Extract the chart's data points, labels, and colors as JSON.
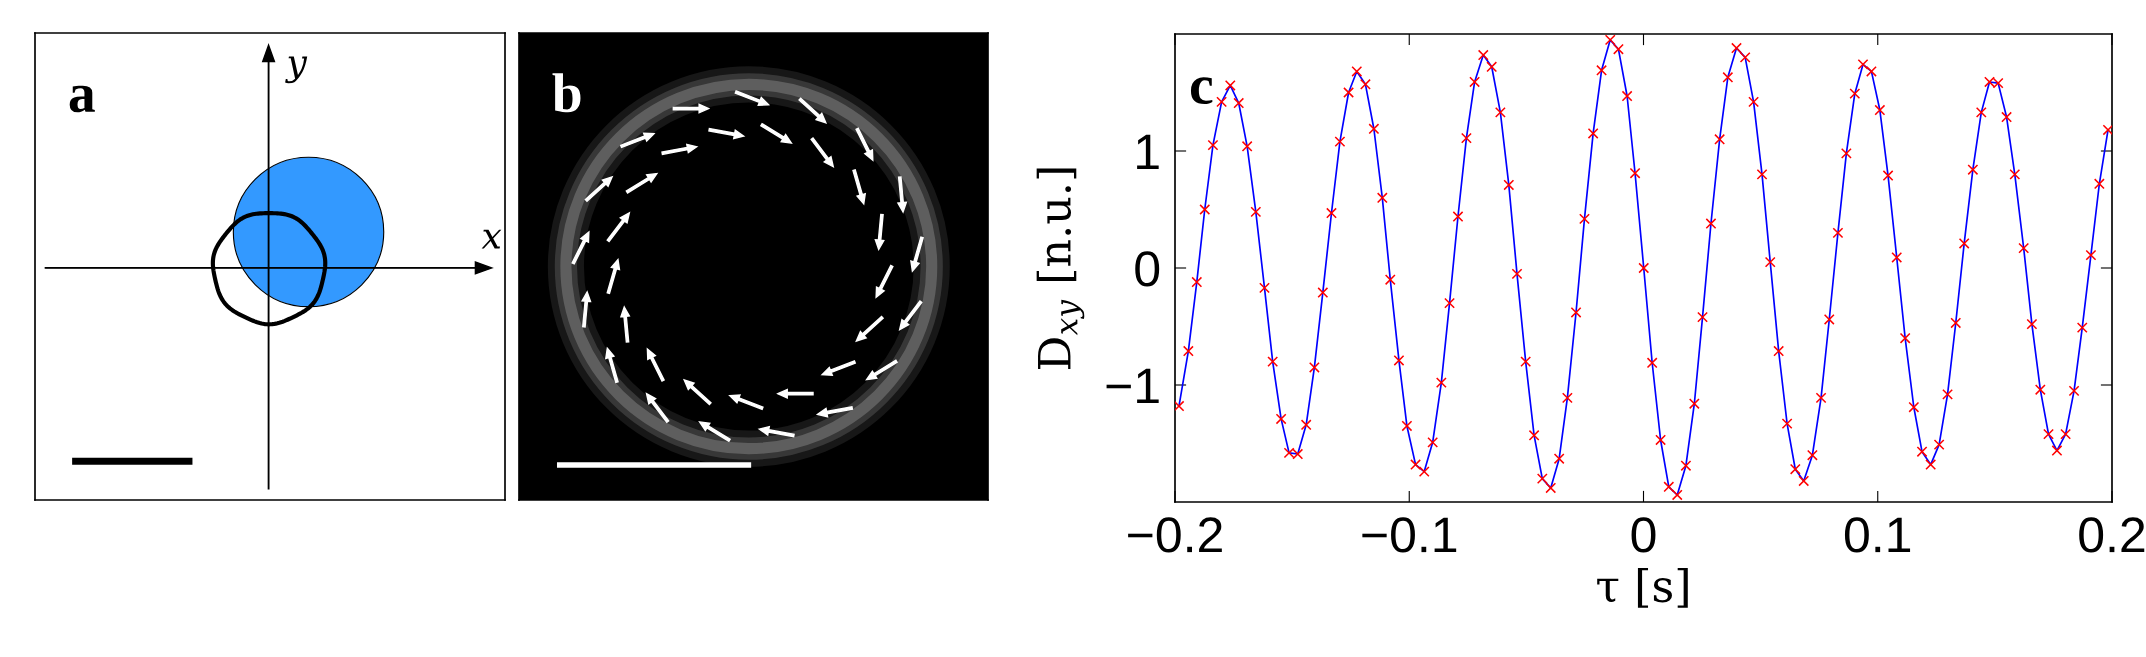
{
  "chart_data": [
    {
      "type": "other",
      "annotations": [
        "a",
        "x",
        "y"
      ]
    },
    {
      "type": "other",
      "annotations": [
        "b"
      ]
    },
    {
      "type": "line",
      "xlabel": "τ [s]",
      "ylabel": "D$_{xy}$ [n.u.]",
      "annotations": [
        "c"
      ],
      "x": [
        -0.1983,
        -0.1943,
        -0.1907,
        -0.1873,
        -0.1838,
        -0.1801,
        -0.1764,
        -0.1728,
        -0.1692,
        -0.1655,
        -0.1618,
        -0.1583,
        -0.1547,
        -0.1513,
        -0.1476,
        -0.144,
        -0.1405,
        -0.1369,
        -0.1332,
        -0.1296,
        -0.1259,
        -0.1224,
        -0.1187,
        -0.1151,
        -0.1115,
        -0.1081,
        -0.1044,
        -0.101,
        -0.0973,
        -0.0936,
        -0.09,
        -0.0863,
        -0.0828,
        -0.0792,
        -0.0756,
        -0.0721,
        -0.0684,
        -0.0648,
        -0.0611,
        -0.0575,
        -0.054,
        -0.0503,
        -0.0467,
        -0.0432,
        -0.0396,
        -0.036,
        -0.0325,
        -0.0288,
        -0.0252,
        -0.0215,
        -0.0179,
        -0.0142,
        -0.0107,
        -0.007,
        -0.0036,
        0.0001,
        0.0037,
        0.0073,
        0.0108,
        0.0144,
        0.0181,
        0.0217,
        0.0252,
        0.0288,
        0.0325,
        0.036,
        0.0397,
        0.0434,
        0.047,
        0.0506,
        0.0541,
        0.0577,
        0.0613,
        0.0648,
        0.0684,
        0.0721,
        0.0758,
        0.0793,
        0.083,
        0.0866,
        0.0902,
        0.0937,
        0.0973,
        0.1009,
        0.1044,
        0.1081,
        0.1117,
        0.1154,
        0.1189,
        0.1226,
        0.1262,
        0.1298,
        0.1333,
        0.1369,
        0.1406,
        0.1442,
        0.1477,
        0.1514,
        0.155,
        0.1585,
        0.1623,
        0.1658,
        0.1694,
        0.1729,
        0.1765,
        0.1802,
        0.1838,
        0.1873,
        0.191,
        0.1946,
        0.1983
      ],
      "series": [
        {
          "type": "line",
          "color": "#0000ff",
          "values": [
            -1.18,
            -0.71,
            -0.12,
            0.5,
            1.05,
            1.42,
            1.56,
            1.41,
            1.04,
            0.48,
            -0.17,
            -0.8,
            -1.29,
            -1.58,
            -1.59,
            -1.34,
            -0.85,
            -0.21,
            0.47,
            1.08,
            1.5,
            1.68,
            1.57,
            1.19,
            0.6,
            -0.1,
            -0.79,
            -1.35,
            -1.68,
            -1.74,
            -1.49,
            -0.98,
            -0.3,
            0.44,
            1.11,
            1.59,
            1.82,
            1.72,
            1.33,
            0.71,
            -0.05,
            -0.8,
            -1.43,
            -1.8,
            -1.88,
            -1.63,
            -1.11,
            -0.38,
            0.42,
            1.15,
            1.69,
            1.95,
            1.87,
            1.47,
            0.81,
            0.0,
            -0.81,
            -1.47,
            -1.87,
            -1.94,
            -1.69,
            -1.16,
            -0.42,
            0.38,
            1.1,
            1.63,
            1.88,
            1.8,
            1.42,
            0.8,
            0.05,
            -0.71,
            -1.33,
            -1.72,
            -1.82,
            -1.6,
            -1.11,
            -0.44,
            0.3,
            0.98,
            1.49,
            1.74,
            1.68,
            1.35,
            0.79,
            0.09,
            -0.6,
            -1.19,
            -1.57,
            -1.68,
            -1.51,
            -1.08,
            -0.47,
            0.21,
            0.84,
            1.33,
            1.59,
            1.58,
            1.29,
            0.8,
            0.17,
            -0.48,
            -1.04,
            -1.42,
            -1.56,
            -1.42,
            -1.05,
            -0.51,
            0.11,
            0.72,
            1.18
          ]
        },
        {
          "type": "scatter",
          "color": "#ff0000",
          "marker": "cross",
          "values": [
            -1.18,
            -0.71,
            -0.12,
            0.5,
            1.05,
            1.42,
            1.56,
            1.41,
            1.04,
            0.48,
            -0.17,
            -0.8,
            -1.29,
            -1.58,
            -1.59,
            -1.34,
            -0.85,
            -0.21,
            0.47,
            1.08,
            1.5,
            1.68,
            1.57,
            1.19,
            0.6,
            -0.1,
            -0.79,
            -1.35,
            -1.68,
            -1.74,
            -1.49,
            -0.98,
            -0.3,
            0.44,
            1.11,
            1.59,
            1.82,
            1.72,
            1.33,
            0.71,
            -0.05,
            -0.8,
            -1.43,
            -1.8,
            -1.88,
            -1.63,
            -1.11,
            -0.38,
            0.42,
            1.15,
            1.69,
            1.95,
            1.87,
            1.47,
            0.81,
            0.0,
            -0.81,
            -1.47,
            -1.87,
            -1.94,
            -1.69,
            -1.16,
            -0.42,
            0.38,
            1.1,
            1.63,
            1.88,
            1.8,
            1.42,
            0.8,
            0.05,
            -0.71,
            -1.33,
            -1.72,
            -1.82,
            -1.6,
            -1.11,
            -0.44,
            0.3,
            0.98,
            1.49,
            1.74,
            1.68,
            1.35,
            0.79,
            0.09,
            -0.6,
            -1.19,
            -1.57,
            -1.68,
            -1.51,
            -1.08,
            -0.47,
            0.21,
            0.84,
            1.33,
            1.59,
            1.58,
            1.29,
            0.8,
            0.17,
            -0.48,
            -1.04,
            -1.42,
            -1.56,
            -1.42,
            -1.05,
            -0.51,
            0.11,
            0.72,
            1.18
          ]
        }
      ],
      "xlim": [
        -0.2,
        0.2
      ],
      "ylim": [
        -2,
        2
      ],
      "xticks": [
        {
          "value": -0.2,
          "label": "−0.2"
        },
        {
          "value": -0.1,
          "label": "−0.1"
        },
        0,
        0.1,
        0.2
      ],
      "yticks": [
        {
          "value": -1,
          "label": "−1"
        },
        0,
        1
      ]
    }
  ]
}
